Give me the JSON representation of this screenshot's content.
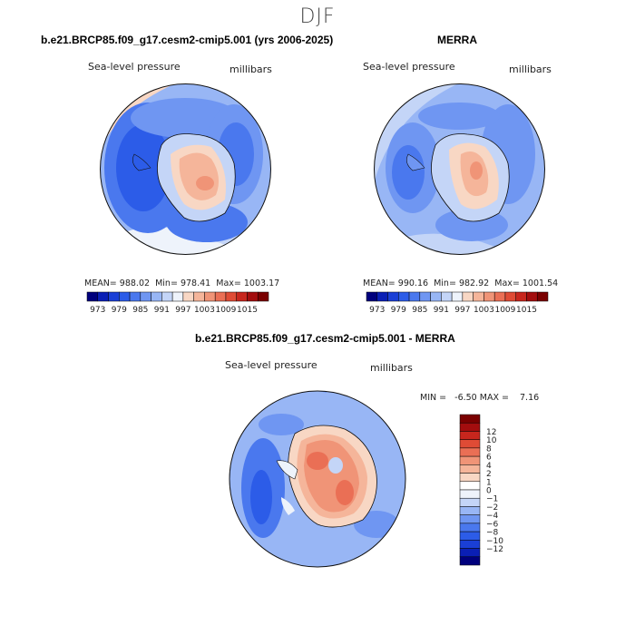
{
  "page_title": "DJF",
  "colors": {
    "palette": [
      "#00007d",
      "#0a1fb5",
      "#1a3fd6",
      "#2c5ce8",
      "#4a78ee",
      "#6f96f2",
      "#98b6f5",
      "#c4d5f7",
      "#eef3fb",
      "#f8d7c4",
      "#f5b59a",
      "#f09477",
      "#ea6f55",
      "#df4b35",
      "#c7261d",
      "#a30d0e",
      "#7a0000"
    ],
    "diff_palette": [
      "#00007d",
      "#0a1fb5",
      "#1a3fd6",
      "#2c5ce8",
      "#4a78ee",
      "#6f96f2",
      "#98b6f5",
      "#c4d5f7",
      "#eef3fb",
      "#ffffff",
      "#f8d7c4",
      "#f5b59a",
      "#f09477",
      "#ea6f55",
      "#df4b35",
      "#c7261d",
      "#a30d0e",
      "#7a0000"
    ]
  },
  "panels": [
    {
      "title": "b.e21.BRCP85.f09_g17.cesm2-cmip5.001 (yrs 2006-2025)",
      "variable": "Sea-level pressure",
      "units": "millibars",
      "stats": {
        "mean_label": "MEAN=",
        "mean": "988.02",
        "min_label": "Min=",
        "min": "978.41",
        "max_label": "Max=",
        "max": "1003.17"
      },
      "colorbar_labels": [
        "973",
        "979",
        "985",
        "991",
        "997",
        "1003",
        "1009",
        "1015"
      ]
    },
    {
      "title": "MERRA",
      "variable": "Sea-level pressure",
      "units": "millibars",
      "stats": {
        "mean_label": "MEAN=",
        "mean": "990.16",
        "min_label": "Min=",
        "min": "982.92",
        "max_label": "Max=",
        "max": "1001.54"
      },
      "colorbar_labels": [
        "973",
        "979",
        "985",
        "991",
        "997",
        "1003",
        "1009",
        "1015"
      ]
    },
    {
      "title": "b.e21.BRCP85.f09_g17.cesm2-cmip5.001 - MERRA",
      "variable": "Sea-level pressure",
      "units": "millibars",
      "stats_text": "MIN =   -6.50 MAX =    7.16",
      "colorbar_labels": [
        "12",
        "10",
        "8",
        "6",
        "4",
        "2",
        "1",
        "0",
        "-1",
        "-2",
        "-4",
        "-6",
        "-8",
        "-10",
        "-12"
      ]
    }
  ],
  "chart_data": [
    {
      "type": "heatmap",
      "projection": "polar stereographic (south)",
      "title": "b.e21.BRCP85.f09_g17.cesm2-cmip5.001 (yrs 2006-2025)",
      "field": "Sea-level pressure",
      "units": "millibars",
      "mean": 988.02,
      "min": 978.41,
      "max": 1003.17,
      "contour_levels": [
        973,
        976,
        979,
        982,
        985,
        988,
        991,
        994,
        997,
        1000,
        1003,
        1006,
        1009,
        1012,
        1015
      ]
    },
    {
      "type": "heatmap",
      "projection": "polar stereographic (south)",
      "title": "MERRA",
      "field": "Sea-level pressure",
      "units": "millibars",
      "mean": 990.16,
      "min": 982.92,
      "max": 1001.54,
      "contour_levels": [
        973,
        976,
        979,
        982,
        985,
        988,
        991,
        994,
        997,
        1000,
        1003,
        1006,
        1009,
        1012,
        1015
      ]
    },
    {
      "type": "heatmap",
      "projection": "polar stereographic (south)",
      "title": "b.e21.BRCP85.f09_g17.cesm2-cmip5.001 - MERRA",
      "field": "Sea-level pressure",
      "units": "millibars",
      "min": -6.5,
      "max": 7.16,
      "contour_levels": [
        -12,
        -10,
        -8,
        -6,
        -4,
        -2,
        -1,
        0,
        1,
        2,
        4,
        6,
        8,
        10,
        12
      ]
    }
  ]
}
